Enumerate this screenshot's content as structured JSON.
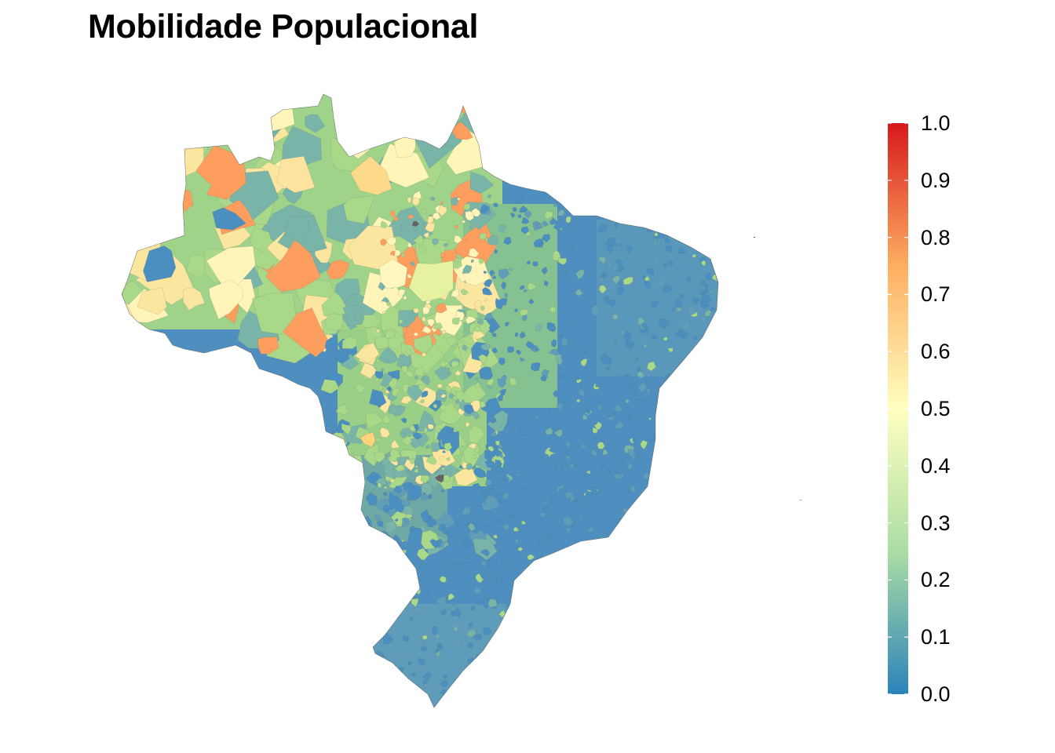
{
  "title": "Mobilidade Populacional",
  "legend": {
    "labels": [
      "1.0",
      "0.9",
      "0.8",
      "0.7",
      "0.6",
      "0.5",
      "0.4",
      "0.3",
      "0.2",
      "0.1",
      "0.0"
    ],
    "scale_min": 0.0,
    "scale_max": 1.0,
    "palette": [
      "#2b83ba",
      "#abdda4",
      "#ffffbf",
      "#fdae61",
      "#d7191c"
    ]
  },
  "map": {
    "region": "Brazil municipalities choropleth",
    "colors": {
      "low": "#4a8fbf",
      "low_mid": "#79b4a9",
      "mid": "#a8d888",
      "high_mid": "#fbe6a0",
      "high": "#fd9e5e",
      "missing": "#636363"
    }
  }
}
